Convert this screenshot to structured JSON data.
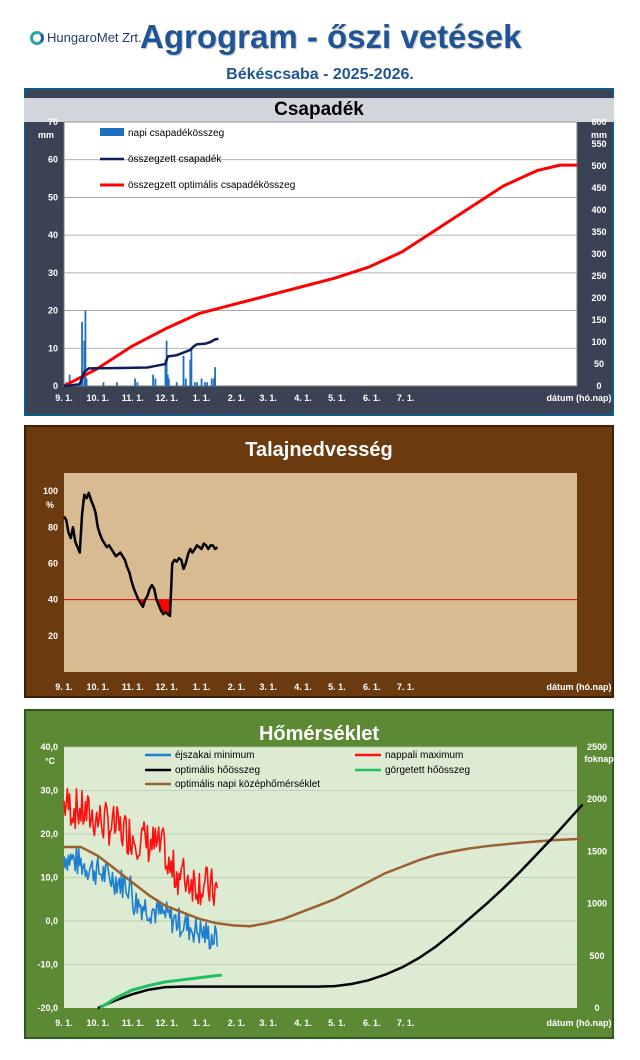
{
  "header": {
    "logo_text": "HungaroMet Zrt.",
    "title": "Agrogram - őszi vetések",
    "subtitle": "Békéscsaba  - 2025-2026."
  },
  "x_ticks": [
    "9. 1.",
    "10. 1.",
    "11. 1.",
    "12. 1.",
    "1. 1.",
    "2. 1.",
    "3. 1.",
    "4. 1.",
    "5. 1.",
    "6. 1.",
    "7. 1."
  ],
  "x_axis_label": "dátum (hó.nap)",
  "chart_data": [
    {
      "type": "bar",
      "title": "Csapadék",
      "y_unit_left": "mm",
      "y_unit_right": "mm",
      "ylim_left": [
        0,
        70
      ],
      "ylim_right": [
        0,
        600
      ],
      "left_ticks": [
        "0",
        "10",
        "20",
        "30",
        "40",
        "50",
        "60",
        "70"
      ],
      "right_ticks": [
        "0",
        "50",
        "100",
        "150",
        "200",
        "250",
        "300",
        "350",
        "400",
        "450",
        "500",
        "550",
        "600"
      ],
      "grid": true,
      "legend": [
        "napi csapadékösszeg",
        "összegzett csapadék",
        "összegzett optimális csapadékösszeg"
      ],
      "colors": {
        "bars": "#1f6fc0",
        "cumulative": "#0d1f5c",
        "optimal": "#ff0000"
      },
      "daily_bars": [
        [
          2,
          1
        ],
        [
          5,
          3
        ],
        [
          16,
          17
        ],
        [
          18,
          12
        ],
        [
          19,
          20
        ],
        [
          20,
          2
        ],
        [
          35,
          1
        ],
        [
          47,
          1
        ],
        [
          63,
          2
        ],
        [
          65,
          1
        ],
        [
          79,
          3
        ],
        [
          81,
          2
        ],
        [
          90,
          7
        ],
        [
          91,
          12
        ],
        [
          92,
          3
        ],
        [
          93,
          2
        ],
        [
          100,
          1
        ],
        [
          106,
          8
        ],
        [
          108,
          2
        ],
        [
          112,
          7
        ],
        [
          113,
          10
        ],
        [
          116,
          1
        ],
        [
          118,
          1
        ],
        [
          122,
          2
        ],
        [
          125,
          1
        ],
        [
          127,
          1
        ],
        [
          131,
          2
        ],
        [
          133,
          2
        ],
        [
          134,
          5
        ]
      ],
      "cumulative": [
        [
          0,
          0
        ],
        [
          4,
          1
        ],
        [
          14,
          4
        ],
        [
          18,
          32
        ],
        [
          22,
          40
        ],
        [
          50,
          41
        ],
        [
          74,
          42
        ],
        [
          80,
          45
        ],
        [
          90,
          50
        ],
        [
          92,
          67
        ],
        [
          100,
          70
        ],
        [
          105,
          75
        ],
        [
          112,
          82
        ],
        [
          115,
          90
        ],
        [
          118,
          95
        ],
        [
          125,
          96
        ],
        [
          130,
          100
        ],
        [
          134,
          106
        ],
        [
          137,
          107
        ]
      ],
      "optimal": [
        [
          0,
          0
        ],
        [
          30,
          40
        ],
        [
          60,
          90
        ],
        [
          90,
          130
        ],
        [
          120,
          165
        ],
        [
          150,
          185
        ],
        [
          180,
          205
        ],
        [
          210,
          225
        ],
        [
          240,
          245
        ],
        [
          270,
          270
        ],
        [
          300,
          305
        ],
        [
          330,
          355
        ],
        [
          360,
          405
        ],
        [
          390,
          455
        ],
        [
          420,
          490
        ],
        [
          440,
          502
        ],
        [
          455,
          502
        ]
      ]
    },
    {
      "type": "line",
      "title": "Talajnedvesség",
      "y_unit_left": "%",
      "ylim_left": [
        0,
        100
      ],
      "left_ticks": [
        "20",
        "40",
        "60",
        "80",
        "100"
      ],
      "threshold": 40,
      "colors": {
        "line": "#000000",
        "threshold": "#d00000",
        "deficit": "#ff0000",
        "bg": "#d9bb92"
      },
      "series": [
        [
          0,
          86
        ],
        [
          2,
          84
        ],
        [
          4,
          77
        ],
        [
          6,
          74
        ],
        [
          8,
          80
        ],
        [
          10,
          72
        ],
        [
          12,
          69
        ],
        [
          14,
          66
        ],
        [
          16,
          87
        ],
        [
          18,
          98
        ],
        [
          20,
          96
        ],
        [
          22,
          99
        ],
        [
          24,
          95
        ],
        [
          26,
          92
        ],
        [
          28,
          88
        ],
        [
          30,
          80
        ],
        [
          32,
          76
        ],
        [
          34,
          73
        ],
        [
          36,
          71
        ],
        [
          38,
          69
        ],
        [
          40,
          70
        ],
        [
          42,
          68
        ],
        [
          44,
          66
        ],
        [
          46,
          64
        ],
        [
          48,
          65
        ],
        [
          50,
          66
        ],
        [
          52,
          64
        ],
        [
          54,
          62
        ],
        [
          56,
          58
        ],
        [
          58,
          55
        ],
        [
          60,
          50
        ],
        [
          62,
          46
        ],
        [
          64,
          43
        ],
        [
          66,
          40
        ],
        [
          68,
          38
        ],
        [
          70,
          36
        ],
        [
          72,
          40
        ],
        [
          74,
          42
        ],
        [
          76,
          46
        ],
        [
          78,
          48
        ],
        [
          80,
          46
        ],
        [
          82,
          40
        ],
        [
          84,
          37
        ],
        [
          86,
          34
        ],
        [
          88,
          32
        ],
        [
          90,
          33
        ],
        [
          92,
          32
        ],
        [
          94,
          31
        ],
        [
          96,
          60
        ],
        [
          98,
          62
        ],
        [
          100,
          61
        ],
        [
          102,
          63
        ],
        [
          104,
          62
        ],
        [
          106,
          57
        ],
        [
          108,
          60
        ],
        [
          110,
          65
        ],
        [
          112,
          68
        ],
        [
          114,
          66
        ],
        [
          116,
          68
        ],
        [
          118,
          70
        ],
        [
          120,
          69
        ],
        [
          122,
          68
        ],
        [
          124,
          71
        ],
        [
          126,
          70
        ],
        [
          128,
          68
        ],
        [
          130,
          70
        ],
        [
          132,
          70
        ],
        [
          134,
          68
        ],
        [
          136,
          69
        ]
      ]
    },
    {
      "type": "line",
      "title": "Hőmérséklet",
      "y_unit_left": "°C",
      "y_unit_right": "foknap",
      "ylim_left": [
        -20,
        40
      ],
      "ylim_right": [
        0,
        2500
      ],
      "left_ticks": [
        "-20,0",
        "-10,0",
        "0,0",
        "10,0",
        "20,0",
        "30,0",
        "40,0"
      ],
      "right_ticks": [
        "0",
        "500",
        "1000",
        "1500",
        "2000",
        "2500"
      ],
      "legend": [
        "éjszakai minimum",
        "nappali maximum",
        "optimális hőösszeg",
        "görgetett hőösszeg",
        "optimális napi középhőmérséklet"
      ],
      "colors": {
        "min": "#1e7fd0",
        "max": "#ff1010",
        "opt_sum": "#000000",
        "rolling_sum": "#1ec060",
        "opt_mean": "#9a6230",
        "bg": "#dcebd2"
      },
      "opt_mean": [
        [
          0,
          17
        ],
        [
          15,
          17
        ],
        [
          30,
          15
        ],
        [
          45,
          12
        ],
        [
          60,
          9
        ],
        [
          75,
          6
        ],
        [
          90,
          3.5
        ],
        [
          105,
          2
        ],
        [
          120,
          0.5
        ],
        [
          135,
          -0.5
        ],
        [
          150,
          -1
        ],
        [
          165,
          -1.2
        ],
        [
          180,
          -0.5
        ],
        [
          195,
          0.5
        ],
        [
          210,
          2
        ],
        [
          225,
          3.5
        ],
        [
          240,
          5
        ],
        [
          255,
          7
        ],
        [
          270,
          9
        ],
        [
          285,
          11
        ],
        [
          300,
          12.5
        ],
        [
          315,
          14
        ],
        [
          330,
          15.2
        ],
        [
          345,
          16
        ],
        [
          360,
          16.7
        ],
        [
          375,
          17.2
        ],
        [
          390,
          17.6
        ],
        [
          405,
          18
        ],
        [
          420,
          18.3
        ],
        [
          435,
          18.6
        ],
        [
          450,
          18.8
        ],
        [
          460,
          18.9
        ]
      ],
      "opt_sum": [
        [
          30,
          0
        ],
        [
          45,
          70
        ],
        [
          60,
          130
        ],
        [
          75,
          175
        ],
        [
          90,
          200
        ],
        [
          105,
          205
        ],
        [
          150,
          205
        ],
        [
          225,
          205
        ],
        [
          240,
          210
        ],
        [
          255,
          230
        ],
        [
          270,
          265
        ],
        [
          285,
          320
        ],
        [
          300,
          390
        ],
        [
          315,
          480
        ],
        [
          330,
          590
        ],
        [
          345,
          720
        ],
        [
          360,
          860
        ],
        [
          375,
          1000
        ],
        [
          390,
          1150
        ],
        [
          405,
          1310
        ],
        [
          420,
          1480
        ],
        [
          435,
          1650
        ],
        [
          450,
          1830
        ],
        [
          460,
          1950
        ]
      ],
      "rolling_sum": [
        [
          32,
          0
        ],
        [
          45,
          90
        ],
        [
          60,
          170
        ],
        [
          75,
          215
        ],
        [
          90,
          250
        ],
        [
          105,
          270
        ],
        [
          120,
          290
        ],
        [
          135,
          310
        ],
        [
          140,
          315
        ]
      ]
    }
  ]
}
